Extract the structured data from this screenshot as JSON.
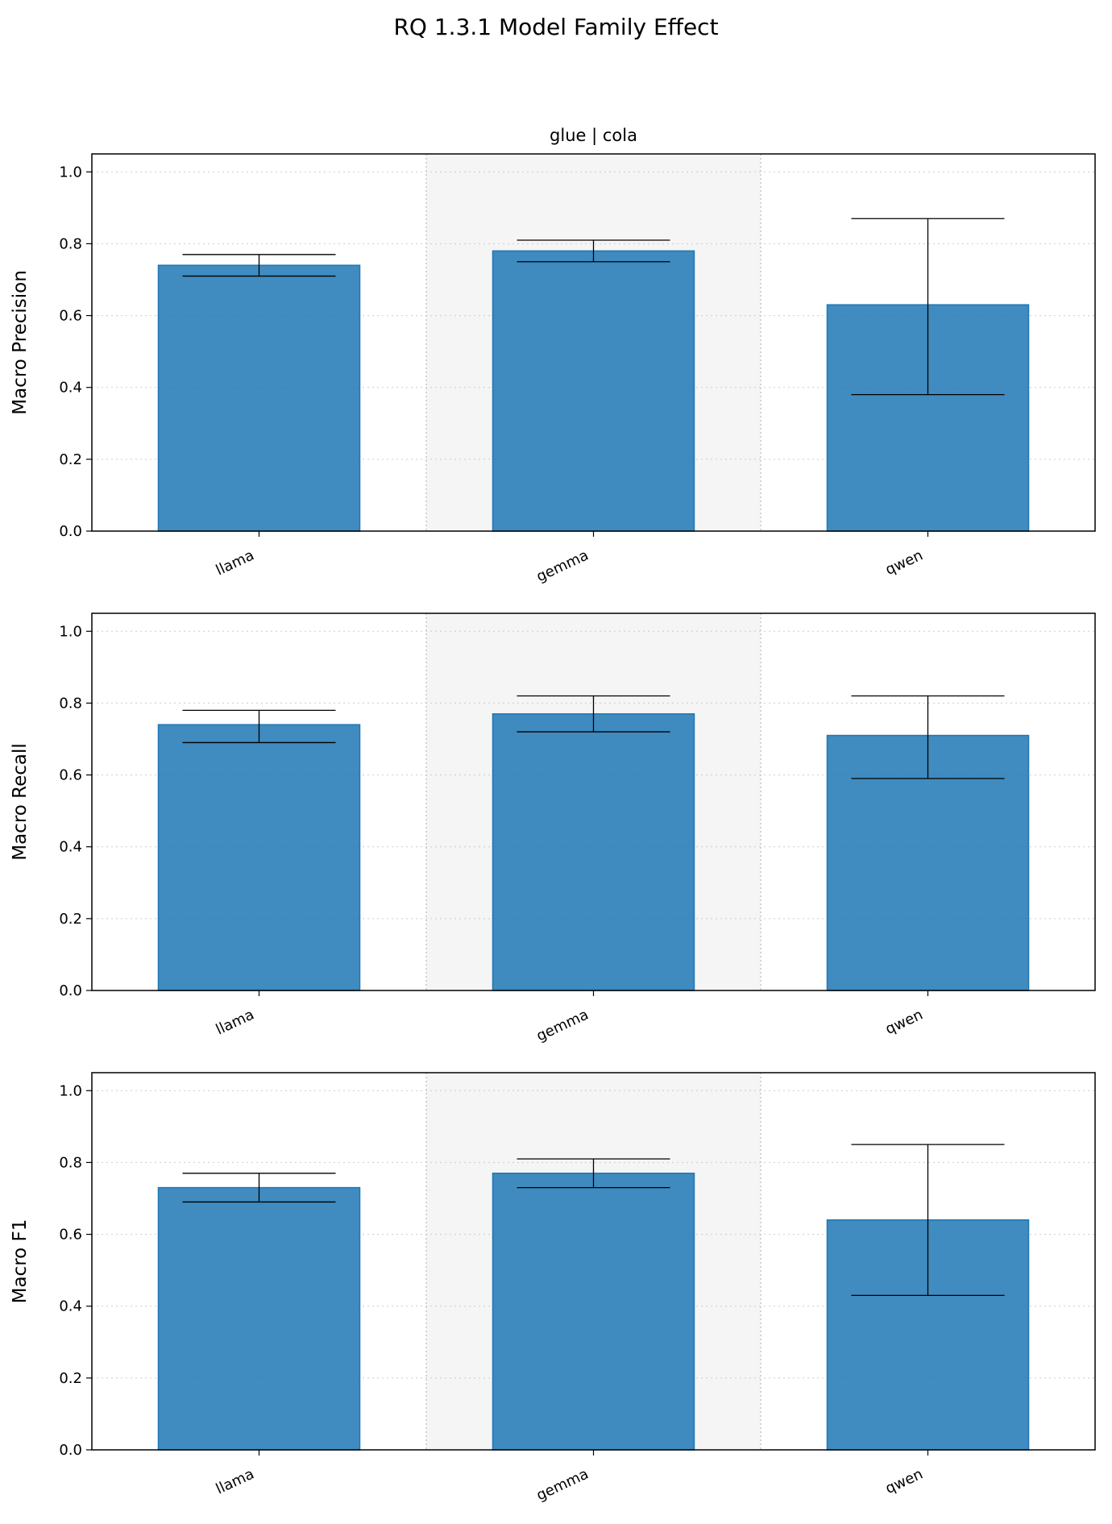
{
  "figure": {
    "title": "RQ 1.3.1 Model Family Effect",
    "subplot_title": "glue | cola"
  },
  "colors": {
    "bar": "#1f77b4",
    "bar_opacity": 0.85,
    "errorbar": "#000000",
    "shaded_band": "#f5f5f5",
    "grid": "#cccccc"
  },
  "chart_data": [
    {
      "type": "bar",
      "title": "glue | cola",
      "ylabel": "Macro Precision",
      "xlabel": "",
      "categories": [
        "llama",
        "gemma",
        "qwen"
      ],
      "values": [
        0.74,
        0.78,
        0.63
      ],
      "error_low": [
        0.71,
        0.75,
        0.38
      ],
      "error_high": [
        0.77,
        0.81,
        0.87
      ],
      "ylim": [
        0,
        1.05
      ],
      "yticks": [
        "0.0",
        "0.2",
        "0.4",
        "0.6",
        "0.8",
        "1.0"
      ],
      "grid": "y-dotted",
      "shaded_category": "gemma"
    },
    {
      "type": "bar",
      "title": "",
      "ylabel": "Macro Recall",
      "xlabel": "",
      "categories": [
        "llama",
        "gemma",
        "qwen"
      ],
      "values": [
        0.74,
        0.77,
        0.71
      ],
      "error_low": [
        0.69,
        0.72,
        0.59
      ],
      "error_high": [
        0.78,
        0.82,
        0.82
      ],
      "ylim": [
        0,
        1.05
      ],
      "yticks": [
        "0.0",
        "0.2",
        "0.4",
        "0.6",
        "0.8",
        "1.0"
      ],
      "grid": "y-dotted",
      "shaded_category": "gemma"
    },
    {
      "type": "bar",
      "title": "",
      "ylabel": "Macro F1",
      "xlabel": "",
      "categories": [
        "llama",
        "gemma",
        "qwen"
      ],
      "values": [
        0.73,
        0.77,
        0.64
      ],
      "error_low": [
        0.69,
        0.73,
        0.43
      ],
      "error_high": [
        0.77,
        0.81,
        0.85
      ],
      "ylim": [
        0,
        1.05
      ],
      "yticks": [
        "0.0",
        "0.2",
        "0.4",
        "0.6",
        "0.8",
        "1.0"
      ],
      "grid": "y-dotted",
      "shaded_category": "gemma"
    }
  ]
}
